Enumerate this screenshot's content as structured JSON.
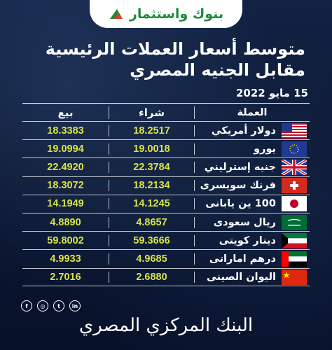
{
  "logo": {
    "text": "بنوك واستثمار",
    "accent": "#1e8a3e"
  },
  "title": {
    "line1": "متوسط أسعار العملات الرئيسية",
    "line2": "مقابل الجنيه المصري"
  },
  "date": "15 مايو 2022",
  "table": {
    "headers": {
      "currency": "العملة",
      "buy": "شراء",
      "sell": "بيع"
    },
    "rows": [
      {
        "flag": "us-flag-icon",
        "name": "دولار أمريكي",
        "buy": "18.2517",
        "sell": "18.3383"
      },
      {
        "flag": "eu-flag-icon",
        "name": "يورو",
        "buy": "19.0018",
        "sell": "19.0994"
      },
      {
        "flag": "uk-flag-icon",
        "name": "جنيه إسترليني",
        "buy": "22.3784",
        "sell": "22.4920"
      },
      {
        "flag": "ch-flag-icon",
        "name": "فرنك سويسرى",
        "buy": "18.2134",
        "sell": "18.3072"
      },
      {
        "flag": "jp-flag-icon",
        "name": "100 ين يابانى",
        "buy": "14.1245",
        "sell": "14.1949"
      },
      {
        "flag": "sa-flag-icon",
        "name": "ريال سعودى",
        "buy": "4.8657",
        "sell": "4.8890"
      },
      {
        "flag": "kw-flag-icon",
        "name": "دينار كويتى",
        "buy": "59.3666",
        "sell": "59.8002"
      },
      {
        "flag": "ae-flag-icon",
        "name": "درهم اماراتى",
        "buy": "4.9685",
        "sell": "4.9933"
      },
      {
        "flag": "cn-flag-icon",
        "name": "اليوان الصينى",
        "buy": "2.6880",
        "sell": "2.7016"
      }
    ]
  },
  "social": {
    "facebook": "f",
    "instagram": "◎",
    "twitter": "t",
    "linkedin": "in"
  },
  "footer": "البنك المركزي المصري",
  "colors": {
    "value": "#d8e24a",
    "background": "#0b1730"
  }
}
